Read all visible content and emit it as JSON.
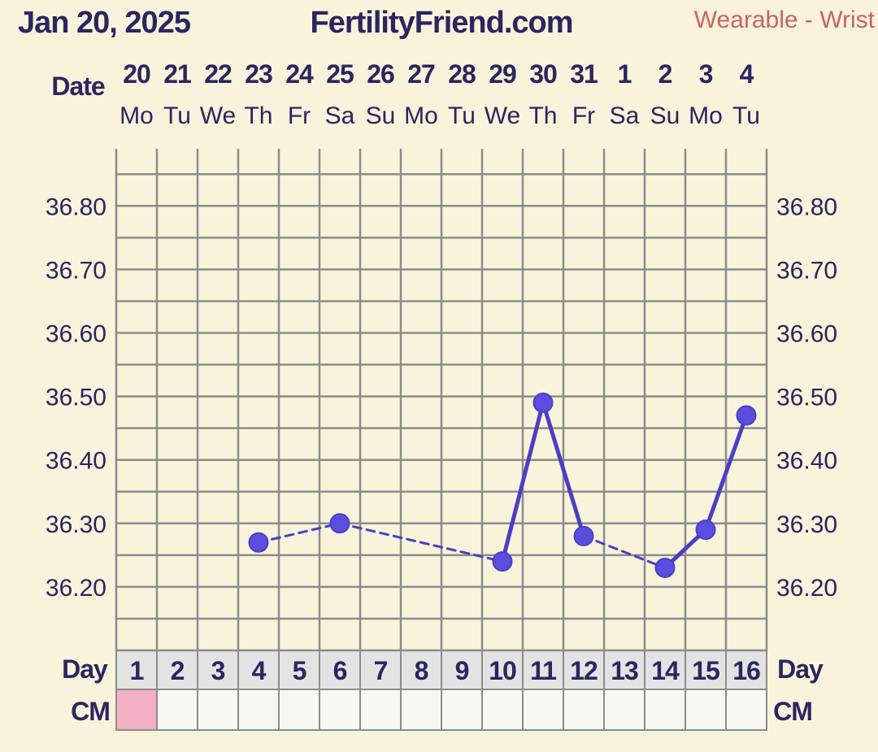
{
  "header": {
    "date": "Jan 20, 2025",
    "site": "FertilityFriend.com",
    "source": "Wearable - Wrist"
  },
  "labels": {
    "date": "Date",
    "day": "Day",
    "cm": "CM"
  },
  "colors": {
    "background": "#f8f3da",
    "grid": "#8c8c8c",
    "text": "#2b2560",
    "source": "#c96464",
    "line": "#4a3fc2",
    "point": "#5a4ee0",
    "day_row": "#e3e3e3",
    "cm_row": "#f7f7f3",
    "cm_marked": "#f4b0c6"
  },
  "chart_data": {
    "type": "line",
    "xlabel": "",
    "ylabel": "",
    "ylim": [
      36.1,
      36.89
    ],
    "yticks": [
      "36.80",
      "36.70",
      "36.60",
      "36.50",
      "36.40",
      "36.30",
      "36.20"
    ],
    "dates": [
      "20",
      "21",
      "22",
      "23",
      "24",
      "25",
      "26",
      "27",
      "28",
      "29",
      "30",
      "31",
      "1",
      "2",
      "3",
      "4"
    ],
    "weekdays": [
      "Mo",
      "Tu",
      "We",
      "Th",
      "Fr",
      "Sa",
      "Su",
      "Mo",
      "Tu",
      "We",
      "Th",
      "Fr",
      "Sa",
      "Su",
      "Mo",
      "Tu"
    ],
    "cycle_days": [
      "1",
      "2",
      "3",
      "4",
      "5",
      "6",
      "7",
      "8",
      "9",
      "10",
      "11",
      "12",
      "13",
      "14",
      "15",
      "16"
    ],
    "cm_marked_days": [
      1
    ],
    "series": [
      {
        "points": [
          {
            "day": 4,
            "temp": 36.27
          },
          {
            "day": 6,
            "temp": 36.3
          },
          {
            "day": 10,
            "temp": 36.24
          },
          {
            "day": 11,
            "temp": 36.49
          },
          {
            "day": 12,
            "temp": 36.28
          },
          {
            "day": 14,
            "temp": 36.23
          },
          {
            "day": 15,
            "temp": 36.29
          },
          {
            "day": 16,
            "temp": 36.47
          }
        ]
      }
    ]
  }
}
